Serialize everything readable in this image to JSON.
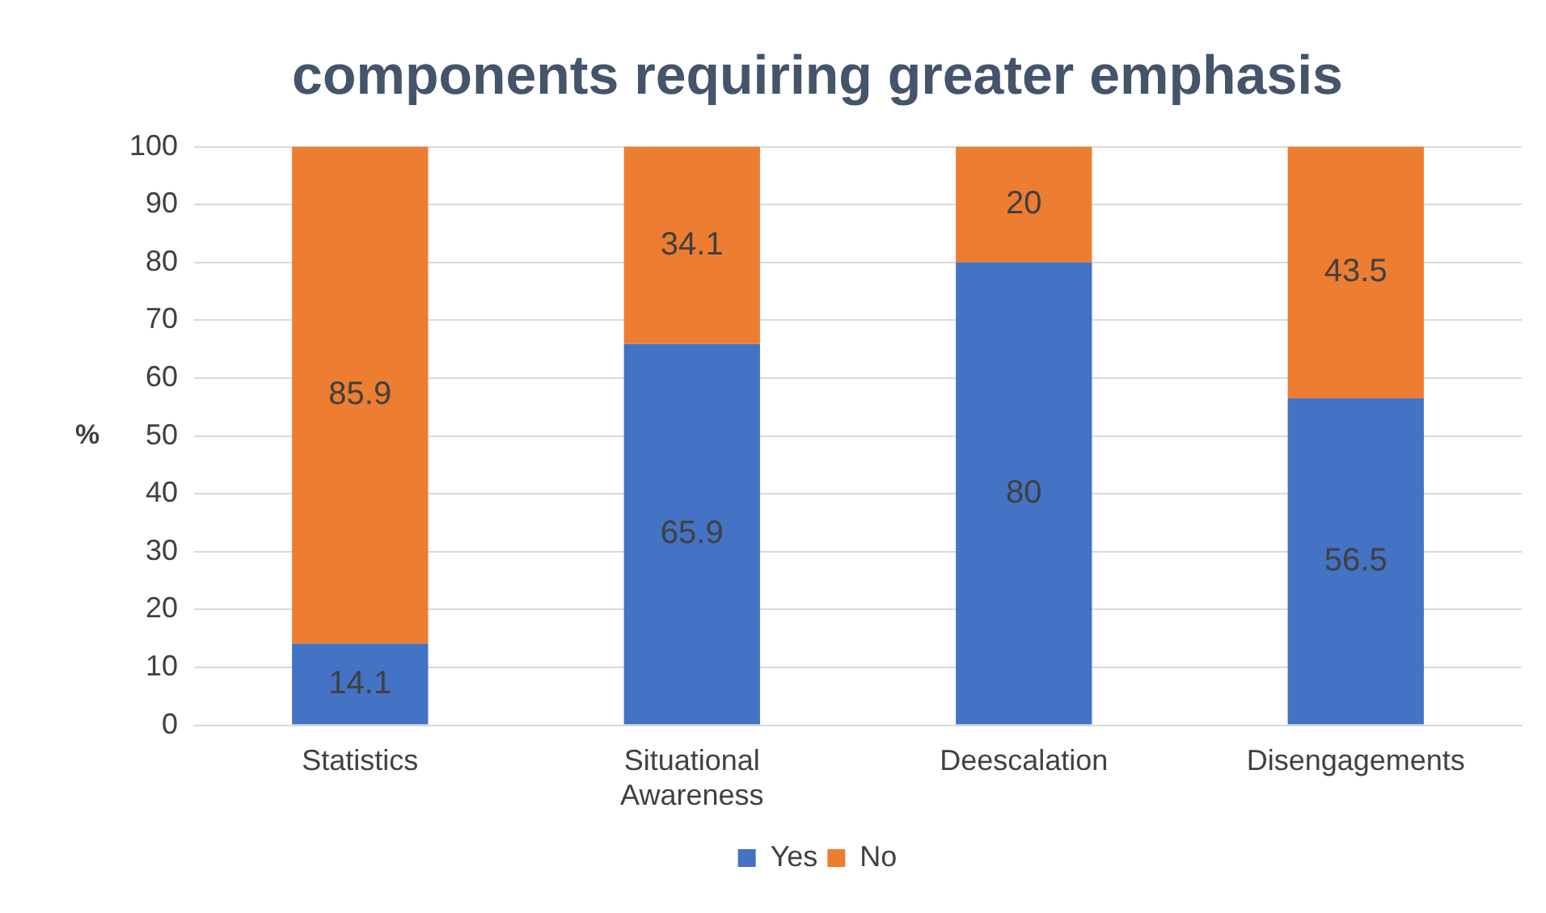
{
  "chart_data": {
    "type": "bar",
    "title": "components requiring greater emphasis",
    "ylabel": "%",
    "categories": [
      "Statistics",
      "Situational Awareness",
      "Deescalation",
      "Disengagements"
    ],
    "series": [
      {
        "name": "Yes",
        "color": "#4472c4",
        "values": [
          14.1,
          65.9,
          80,
          56.5
        ]
      },
      {
        "name": "No",
        "color": "#ed7d31",
        "values": [
          85.9,
          34.1,
          20,
          43.5
        ]
      }
    ],
    "stacked": true,
    "ylim": [
      0,
      100
    ],
    "yticks": [
      0,
      10,
      20,
      30,
      40,
      50,
      60,
      70,
      80,
      90,
      100
    ],
    "grid": "y",
    "legend": "bottom",
    "data_labels": true
  }
}
